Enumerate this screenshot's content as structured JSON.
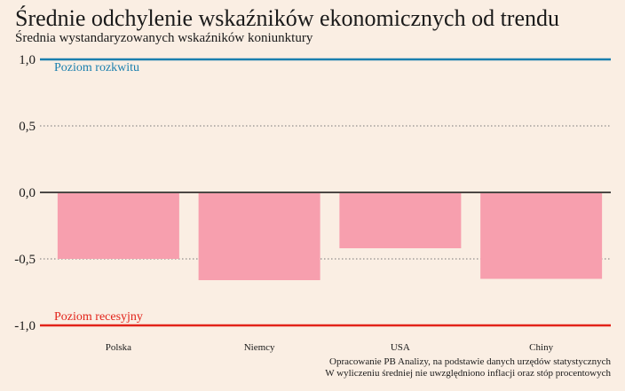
{
  "chart_data": {
    "type": "bar",
    "title": "Średnie odchylenie wskaźników ekonomicznych od trendu",
    "subtitle": "Średnia wystandaryzowanych wskaźników koniunktury",
    "categories": [
      "Polska",
      "Niemcy",
      "USA",
      "Chiny"
    ],
    "values": [
      -0.5,
      -0.66,
      -0.42,
      -0.65
    ],
    "ylim": [
      -1.0,
      1.0
    ],
    "yticks": [
      1.0,
      0.5,
      0.0,
      -0.5,
      -1.0
    ],
    "ytick_labels": [
      "1,0",
      "0,5",
      "0,0",
      "-0,5",
      "-1,0"
    ],
    "bar_color": "#f79fae",
    "reference_lines": [
      {
        "value": 1.0,
        "label": "Poziom rozkwitu",
        "color": "#1a7fae"
      },
      {
        "value": -1.0,
        "label": "Poziom recesyjny",
        "color": "#e2231a"
      }
    ],
    "grid": true,
    "notes": [
      "Opracowanie PB Analizy, na podstawie danych urzędów statystycznych",
      "W wyliczeniu średniej nie uwzględniono inflacji oraz stóp procentowych"
    ]
  }
}
